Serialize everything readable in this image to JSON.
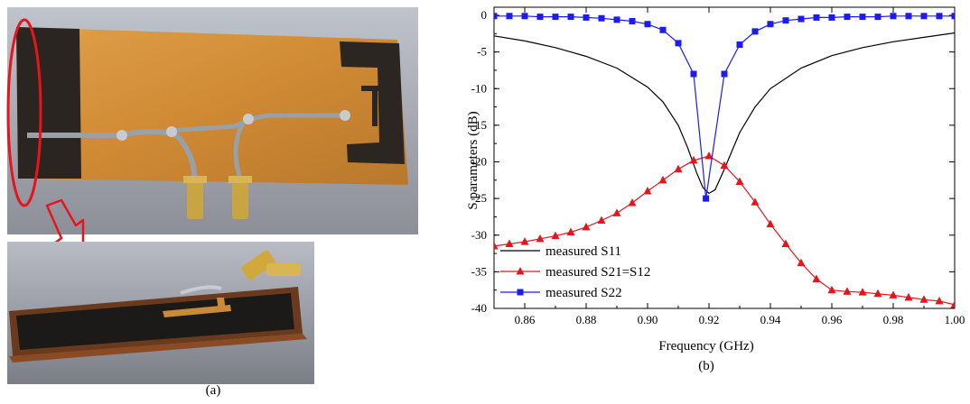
{
  "figure": {
    "caption_a": "(a)",
    "caption_b": "(b)"
  },
  "photos": {
    "top_photo": "antenna-board-photo",
    "bottom_photo": "antenna-side-view-photo",
    "highlight_color": "#e8141c"
  },
  "chart_data": {
    "type": "line",
    "title": "",
    "xlabel": "Frequency (GHz)",
    "ylabel": "S parameters (dB)",
    "xlim": [
      0.85,
      1.0
    ],
    "ylim": [
      -40,
      1
    ],
    "xticks": [
      0.86,
      0.88,
      0.9,
      0.92,
      0.94,
      0.96,
      0.98,
      1.0
    ],
    "xtick_labels": [
      "0.86",
      "0.88",
      "0.90",
      "0.92",
      "0.94",
      "0.96",
      "0.98",
      "1.00"
    ],
    "yticks": [
      0,
      -5,
      -10,
      -15,
      -20,
      -25,
      -30,
      -35,
      -40
    ],
    "ytick_labels": [
      "0",
      "-5",
      "-10",
      "-15",
      "-20",
      "-25",
      "-30",
      "-35",
      "-40"
    ],
    "legend_position": "bottom-left",
    "grid": false,
    "series": [
      {
        "name": "measured S11",
        "color": "#000000",
        "marker": "none",
        "x": [
          0.85,
          0.86,
          0.87,
          0.88,
          0.89,
          0.9,
          0.905,
          0.91,
          0.913,
          0.916,
          0.918,
          0.92,
          0.922,
          0.925,
          0.93,
          0.935,
          0.94,
          0.95,
          0.96,
          0.97,
          0.98,
          0.99,
          1.0
        ],
        "y": [
          -2.8,
          -3.5,
          -4.4,
          -5.6,
          -7.2,
          -9.8,
          -11.8,
          -15.0,
          -18.0,
          -21.5,
          -23.5,
          -24.3,
          -23.8,
          -21.0,
          -16.0,
          -12.5,
          -10.0,
          -7.2,
          -5.5,
          -4.4,
          -3.6,
          -3.0,
          -2.4
        ]
      },
      {
        "name": "measured S21=S12",
        "color": "#e8141c",
        "marker": "triangle",
        "x": [
          0.85,
          0.855,
          0.86,
          0.865,
          0.87,
          0.875,
          0.88,
          0.885,
          0.89,
          0.895,
          0.9,
          0.905,
          0.91,
          0.915,
          0.92,
          0.925,
          0.93,
          0.935,
          0.94,
          0.945,
          0.95,
          0.955,
          0.96,
          0.965,
          0.97,
          0.975,
          0.98,
          0.985,
          0.99,
          0.995,
          1.0
        ],
        "y": [
          -31.5,
          -31.2,
          -30.9,
          -30.5,
          -30.1,
          -29.6,
          -28.9,
          -28.0,
          -27.0,
          -25.6,
          -24.0,
          -22.5,
          -21.0,
          -19.8,
          -19.2,
          -20.5,
          -22.7,
          -25.5,
          -28.5,
          -31.2,
          -33.8,
          -36.0,
          -37.5,
          -37.7,
          -37.8,
          -38.0,
          -38.2,
          -38.5,
          -38.8,
          -39.0,
          -39.5
        ]
      },
      {
        "name": "measured S22",
        "color": "#1c1cf0",
        "marker": "square",
        "x": [
          0.85,
          0.855,
          0.86,
          0.865,
          0.87,
          0.875,
          0.88,
          0.885,
          0.89,
          0.895,
          0.9,
          0.905,
          0.91,
          0.915,
          0.919,
          0.925,
          0.93,
          0.935,
          0.94,
          0.945,
          0.95,
          0.955,
          0.96,
          0.965,
          0.97,
          0.975,
          0.98,
          0.985,
          0.99,
          0.995,
          1.0
        ],
        "y": [
          -0.1,
          -0.1,
          -0.1,
          -0.2,
          -0.2,
          -0.2,
          -0.3,
          -0.4,
          -0.6,
          -0.8,
          -1.2,
          -2.0,
          -3.8,
          -8.0,
          -25.0,
          -8.0,
          -4.0,
          -2.2,
          -1.2,
          -0.7,
          -0.5,
          -0.3,
          -0.3,
          -0.2,
          -0.2,
          -0.2,
          -0.1,
          -0.1,
          -0.1,
          -0.1,
          -0.1
        ]
      }
    ]
  }
}
